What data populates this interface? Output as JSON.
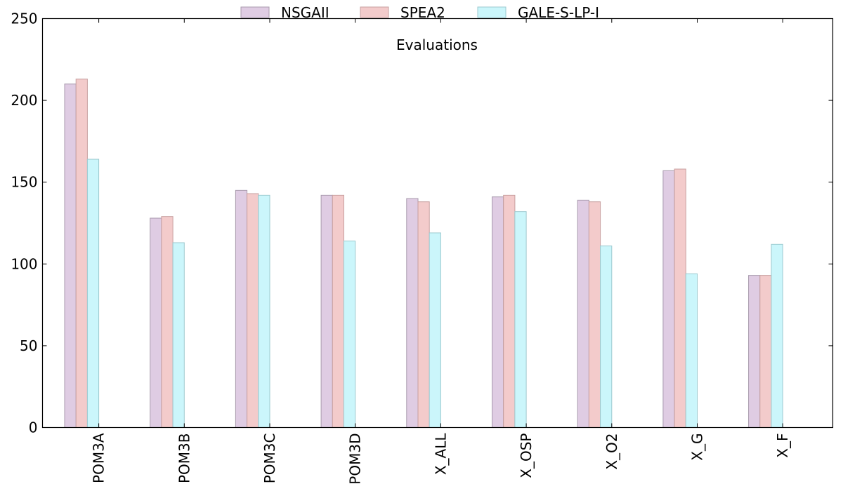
{
  "chart_data": {
    "type": "bar",
    "title": "Evaluations",
    "xlabel": "",
    "ylabel": "",
    "ylim": [
      0,
      250
    ],
    "yticks": [
      0,
      50,
      100,
      150,
      200,
      250
    ],
    "grid": false,
    "legend_position": "top-center",
    "categories": [
      "POM3A",
      "POM3B",
      "POM3C",
      "POM3D",
      "X_ALL",
      "X_OSP",
      "X_O2",
      "X_G",
      "X_F"
    ],
    "series": [
      {
        "name": "NSGAII",
        "color": "#dfcce3",
        "edge": "#a89aad",
        "values": [
          210,
          128,
          145,
          142,
          140,
          141,
          139,
          157,
          93
        ]
      },
      {
        "name": "SPEA2",
        "color": "#f3cbcb",
        "edge": "#c79f9f",
        "values": [
          213,
          129,
          143,
          142,
          138,
          142,
          138,
          158,
          93
        ]
      },
      {
        "name": "GALE-S-LP-I",
        "color": "#cbf6fb",
        "edge": "#9cc9cf",
        "values": [
          164,
          113,
          142,
          114,
          119,
          132,
          111,
          94,
          112
        ]
      }
    ]
  }
}
